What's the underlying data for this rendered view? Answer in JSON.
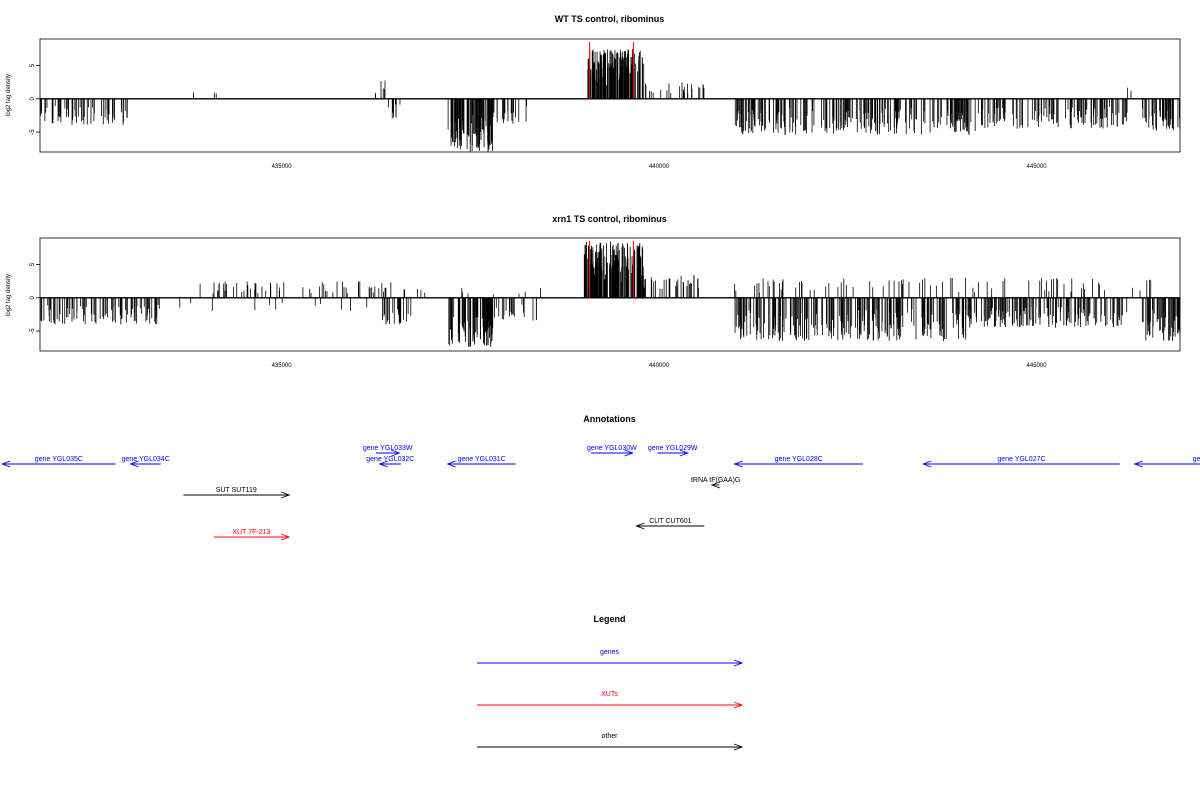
{
  "chart_data": [
    {
      "type": "bar",
      "title": "WT TS control, ribominus",
      "ylabel": "log2 tag density",
      "xlim": [
        431800,
        446900
      ],
      "ylim": [
        -8,
        9
      ],
      "xticks": [
        435000,
        440000,
        445000
      ],
      "yticks": [
        -5,
        0,
        5
      ],
      "ytick_labels": [
        "-5",
        "0",
        "5"
      ],
      "series": [
        {
          "strand": "+",
          "color": "#000000",
          "regions": [
            {
              "start": 433800,
              "end": 433850,
              "max": 1,
              "n": 2
            },
            {
              "start": 434100,
              "end": 434150,
              "max": 1,
              "n": 2
            },
            {
              "start": 436200,
              "end": 436260,
              "max": 1,
              "n": 2
            },
            {
              "start": 436300,
              "end": 436380,
              "max": 3,
              "n": 4
            },
            {
              "start": 439050,
              "end": 439800,
              "max": 7.5,
              "n": 150
            },
            {
              "start": 439800,
              "end": 440600,
              "max": 2.5,
              "n": 24
            },
            {
              "start": 446200,
              "end": 446260,
              "max": 3,
              "n": 2
            }
          ]
        },
        {
          "strand": "-",
          "color": "#000000",
          "regions": [
            {
              "start": 431800,
              "end": 433000,
              "min": -4,
              "n": 60
            },
            {
              "start": 436400,
              "end": 436600,
              "min": -3,
              "n": 10
            },
            {
              "start": 437200,
              "end": 437800,
              "min": -8,
              "n": 90
            },
            {
              "start": 437800,
              "end": 438300,
              "min": -4,
              "n": 20
            },
            {
              "start": 441000,
              "end": 444200,
              "min": -5.5,
              "n": 220
            },
            {
              "start": 444200,
              "end": 446200,
              "min": -4.5,
              "n": 120
            },
            {
              "start": 446400,
              "end": 446900,
              "min": -5,
              "n": 45
            }
          ]
        }
      ],
      "markers": {
        "color": "#ff0000",
        "x": [
          439080,
          439660
        ]
      }
    },
    {
      "type": "bar",
      "title": "xrn1 TS control, ribominus",
      "ylabel": "log2 tag density",
      "xlim": [
        431800,
        446900
      ],
      "ylim": [
        -8,
        9
      ],
      "xticks": [
        435000,
        440000,
        445000
      ],
      "yticks": [
        -5,
        0,
        5
      ],
      "ytick_labels": [
        "-5",
        "0",
        "5"
      ],
      "series": [
        {
          "strand": "+",
          "color": "#000000",
          "regions": [
            {
              "start": 433800,
              "end": 436500,
              "max": 2.5,
              "n": 60
            },
            {
              "start": 436500,
              "end": 438500,
              "max": 1.5,
              "n": 12
            },
            {
              "start": 439000,
              "end": 439800,
              "max": 8.5,
              "n": 150
            },
            {
              "start": 439800,
              "end": 440600,
              "max": 3.5,
              "n": 30
            },
            {
              "start": 441000,
              "end": 446600,
              "max": 3,
              "n": 80
            }
          ]
        },
        {
          "strand": "-",
          "color": "#000000",
          "regions": [
            {
              "start": 431800,
              "end": 433400,
              "min": -4,
              "n": 90
            },
            {
              "start": 433400,
              "end": 436300,
              "min": -2,
              "n": 12
            },
            {
              "start": 436300,
              "end": 436800,
              "min": -4,
              "n": 20
            },
            {
              "start": 437200,
              "end": 437800,
              "min": -7.5,
              "n": 90
            },
            {
              "start": 437800,
              "end": 438400,
              "min": -3.5,
              "n": 20
            },
            {
              "start": 441000,
              "end": 444200,
              "min": -6.5,
              "n": 240
            },
            {
              "start": 444200,
              "end": 446200,
              "min": -4.5,
              "n": 130
            },
            {
              "start": 446400,
              "end": 446900,
              "min": -6.5,
              "n": 50
            }
          ]
        }
      ],
      "markers": {
        "color": "#ff0000",
        "x": [
          439080,
          439660
        ]
      }
    }
  ],
  "annotations": {
    "title": "Annotations",
    "items": [
      {
        "label": "gene YGL035C",
        "start": 432800,
        "end": 431300,
        "row": 0,
        "color": "#0000ff"
      },
      {
        "label": "gene YGL034C",
        "start": 433400,
        "end": 433000,
        "row": 0,
        "color": "#0000ff"
      },
      {
        "label": "gene YGL033W",
        "start": 436250,
        "end": 436560,
        "row": -1,
        "color": "#0000ff"
      },
      {
        "label": "gene YGL032C",
        "start": 436580,
        "end": 436300,
        "row": 0,
        "color": "#0000ff"
      },
      {
        "label": "gene YGL031C",
        "start": 438100,
        "end": 437200,
        "row": 0,
        "color": "#0000ff"
      },
      {
        "label": "gene YGL030W",
        "start": 439100,
        "end": 439650,
        "row": -1,
        "color": "#0000ff"
      },
      {
        "label": "gene YGL029W",
        "start": 439980,
        "end": 440380,
        "row": -1,
        "color": "#0000ff"
      },
      {
        "label": "gene YGL028C",
        "start": 442700,
        "end": 441000,
        "row": 0,
        "color": "#0000ff"
      },
      {
        "label": "gene YGL027C",
        "start": 446100,
        "end": 443500,
        "row": 0,
        "color": "#0000ff"
      },
      {
        "label": "gene YG",
        "start": 448200,
        "end": 446300,
        "row": 0,
        "color": "#0000ff"
      },
      {
        "label": "tRNA tF(GAA)G",
        "start": 440800,
        "end": 440700,
        "row": 1,
        "color": "#000000"
      },
      {
        "label": "SUT SUT119",
        "start": 433700,
        "end": 435100,
        "row": 2,
        "color": "#000000"
      },
      {
        "label": "CUT CUT601",
        "start": 440600,
        "end": 439700,
        "row": 3,
        "color": "#000000"
      },
      {
        "label": "XUT 7F-213",
        "start": 434100,
        "end": 435100,
        "row": 4,
        "color": "#ff0000"
      }
    ]
  },
  "legend": {
    "title": "Legend",
    "items": [
      {
        "label": "genes",
        "color": "#0000ff"
      },
      {
        "label": "XUTs",
        "color": "#ff0000"
      },
      {
        "label": "other",
        "color": "#000000"
      }
    ]
  }
}
